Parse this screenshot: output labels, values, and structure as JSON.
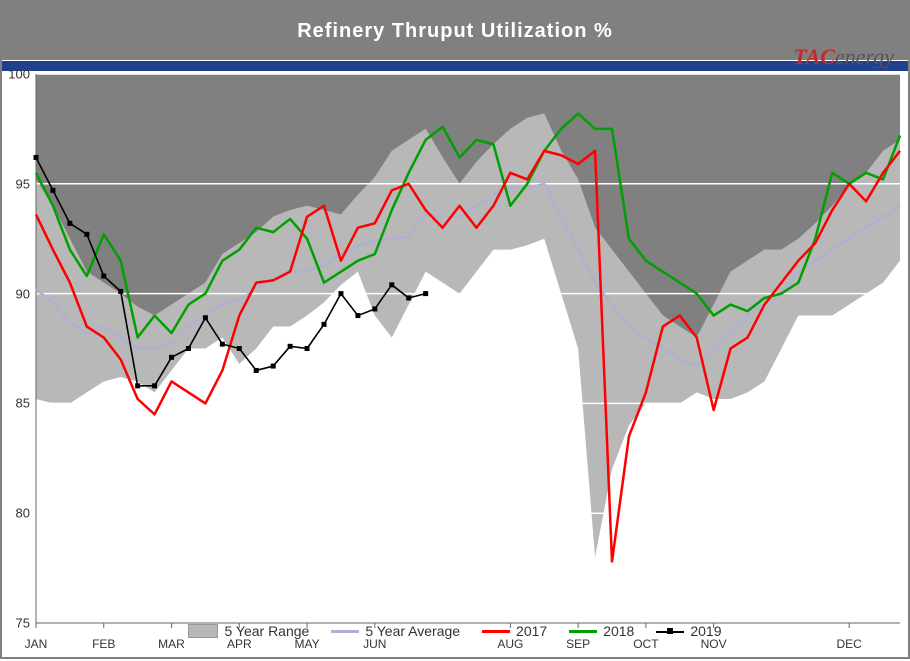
{
  "title": "Refinery Thruput Utilization %",
  "logo": {
    "brand": "TAC",
    "suffix": "energy"
  },
  "chart": {
    "type": "line",
    "ylim": [
      75,
      100
    ],
    "ytick_step": 5,
    "yticks": [
      75,
      80,
      85,
      90,
      95,
      100
    ],
    "months": [
      "JAN",
      "FEB",
      "MAR",
      "APR",
      "MAY",
      "JUN",
      "AUG",
      "SEP",
      "OCT",
      "NOV",
      "DEC"
    ],
    "month_positions_weeks": [
      0,
      4,
      8,
      12,
      16,
      20,
      28,
      32,
      36,
      40,
      48
    ],
    "n_weeks": 52,
    "background_plot_top": "#808080",
    "background_plot_bottom": "#ffffff",
    "gridline_color": "#ffffff",
    "axis_color": "#666666",
    "title_fontsize": 20,
    "tick_fontsize": 13,
    "series": {
      "range_upper": {
        "label": "5 Year Range",
        "color_fill": "#b8b8b8",
        "values": [
          95.2,
          94.0,
          92.5,
          91.0,
          90.5,
          90.0,
          89.4,
          89.0,
          89.5,
          90.0,
          90.5,
          91.8,
          92.3,
          92.8,
          93.5,
          93.8,
          94.0,
          93.8,
          93.6,
          94.5,
          95.3,
          96.5,
          97.0,
          97.5,
          96.2,
          95.0,
          96.0,
          96.8,
          97.5,
          98.0,
          98.2,
          96.5,
          95.2,
          93.0,
          92.0,
          91.0,
          90.0,
          89.0,
          88.5,
          88.0,
          89.5,
          91.0,
          91.5,
          92.0,
          92.0,
          92.5,
          93.2,
          94.0,
          95.0,
          95.5,
          96.5,
          97.0
        ]
      },
      "range_lower": {
        "values": [
          85.2,
          85.0,
          85.0,
          85.5,
          86.0,
          86.2,
          86.0,
          85.5,
          86.5,
          87.5,
          87.5,
          88.0,
          86.8,
          87.5,
          88.5,
          88.5,
          89.0,
          89.6,
          90.4,
          91.0,
          89.0,
          88.0,
          89.5,
          91.0,
          90.5,
          90.0,
          91.0,
          92.0,
          92.0,
          92.2,
          92.5,
          90.0,
          87.5,
          78.0,
          82.0,
          84.0,
          85.0,
          85.0,
          85.0,
          85.5,
          85.2,
          85.2,
          85.5,
          86.0,
          87.5,
          89.0,
          89.0,
          89.0,
          89.5,
          90.0,
          90.5,
          91.5
        ]
      },
      "avg": {
        "label": "5 Year Average",
        "color": "#b0b0d0",
        "line_width": 2.5,
        "values": [
          90.2,
          89.6,
          88.7,
          88.2,
          88.5,
          88.0,
          87.5,
          87.5,
          87.7,
          88.5,
          89.0,
          89.5,
          89.7,
          90.2,
          90.7,
          91.0,
          91.0,
          91.3,
          91.8,
          92.2,
          92.4,
          92.5,
          92.6,
          93.6,
          93.5,
          93.5,
          94.0,
          94.5,
          94.8,
          94.8,
          95.0,
          93.5,
          92.0,
          90.5,
          89.5,
          88.5,
          88.0,
          87.5,
          87.0,
          86.7,
          87.5,
          88.3,
          89.0,
          89.5,
          90.0,
          91.0,
          91.5,
          92.0,
          92.5,
          93.0,
          93.5,
          94.0
        ]
      },
      "y2017": {
        "label": "2017",
        "color": "#ff0000",
        "line_width": 2.5,
        "values": [
          93.6,
          92.0,
          90.5,
          88.5,
          88.0,
          87.0,
          85.2,
          84.5,
          86.0,
          85.5,
          85.0,
          86.5,
          89.0,
          90.5,
          90.6,
          91.0,
          93.5,
          94.0,
          91.5,
          93.0,
          93.2,
          94.7,
          95.0,
          93.8,
          93.0,
          94.0,
          93.0,
          94.0,
          95.5,
          95.2,
          96.5,
          96.3,
          95.9,
          96.5,
          77.8,
          83.5,
          85.5,
          88.5,
          89.0,
          88.0,
          84.7,
          87.5,
          88.0,
          89.5,
          90.5,
          91.5,
          92.3,
          93.8,
          95.0,
          94.2,
          95.5,
          96.5
        ]
      },
      "y2018": {
        "label": "2018",
        "color": "#00a000",
        "line_width": 2.5,
        "values": [
          95.5,
          94.0,
          92.0,
          90.8,
          92.7,
          91.5,
          88.0,
          89.0,
          88.2,
          89.5,
          90.0,
          91.5,
          92.0,
          93.0,
          92.8,
          93.4,
          92.5,
          90.5,
          91.0,
          91.5,
          91.8,
          93.8,
          95.5,
          97.0,
          97.6,
          96.2,
          97.0,
          96.8,
          94.0,
          95.0,
          96.5,
          97.5,
          98.2,
          97.5,
          97.5,
          92.5,
          91.5,
          91.0,
          90.5,
          90.0,
          89.0,
          89.5,
          89.2,
          89.8,
          90.0,
          90.5,
          92.5,
          95.5,
          95.0,
          95.5,
          95.2,
          97.2
        ]
      },
      "y2019": {
        "label": "2019",
        "color": "#000000",
        "line_width": 1.6,
        "marker": "square",
        "marker_size": 5,
        "values": [
          96.2,
          94.7,
          93.2,
          92.7,
          90.8,
          90.1,
          85.8,
          85.8,
          87.1,
          87.5,
          88.9,
          87.7,
          87.5,
          86.5,
          86.7,
          87.6,
          87.5,
          88.6,
          90.0,
          89.0,
          89.3,
          90.4,
          89.8,
          90.0
        ]
      }
    }
  },
  "legend_order": [
    "range_upper",
    "avg",
    "y2017",
    "y2018",
    "y2019"
  ]
}
